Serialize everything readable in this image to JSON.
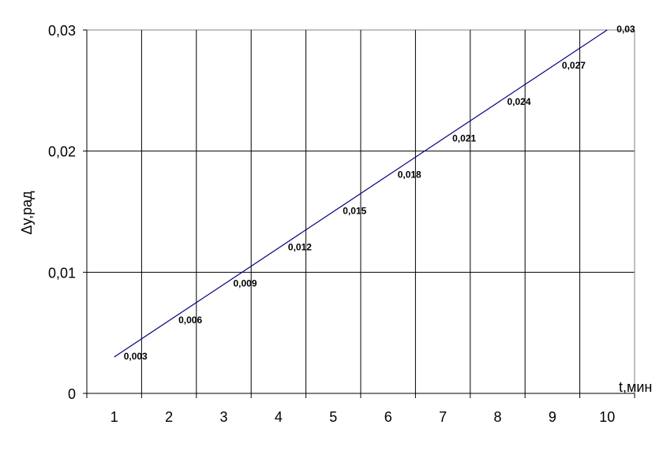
{
  "chart_data": {
    "type": "line",
    "categories": [
      "1",
      "2",
      "3",
      "4",
      "5",
      "6",
      "7",
      "8",
      "9",
      "10"
    ],
    "series": [
      {
        "values": [
          0.003,
          0.006,
          0.009,
          0.012,
          0.015,
          0.018,
          0.021,
          0.024,
          0.027,
          0.03
        ],
        "labels": [
          "0,003",
          "0,006",
          "0,009",
          "0,012",
          "0,015",
          "0,018",
          "0,021",
          "0,024",
          "0,027",
          "0,03"
        ],
        "color": "#000080"
      }
    ],
    "xlabel": "t,мин",
    "ylabel": "Δy,рад",
    "ylim": [
      0,
      0.03
    ],
    "yticks": [
      0,
      0.01,
      0.02,
      0.03
    ],
    "ytick_labels": [
      "0",
      "0,01",
      "0,02",
      "0,03"
    ],
    "grid": true,
    "legend": "none"
  }
}
